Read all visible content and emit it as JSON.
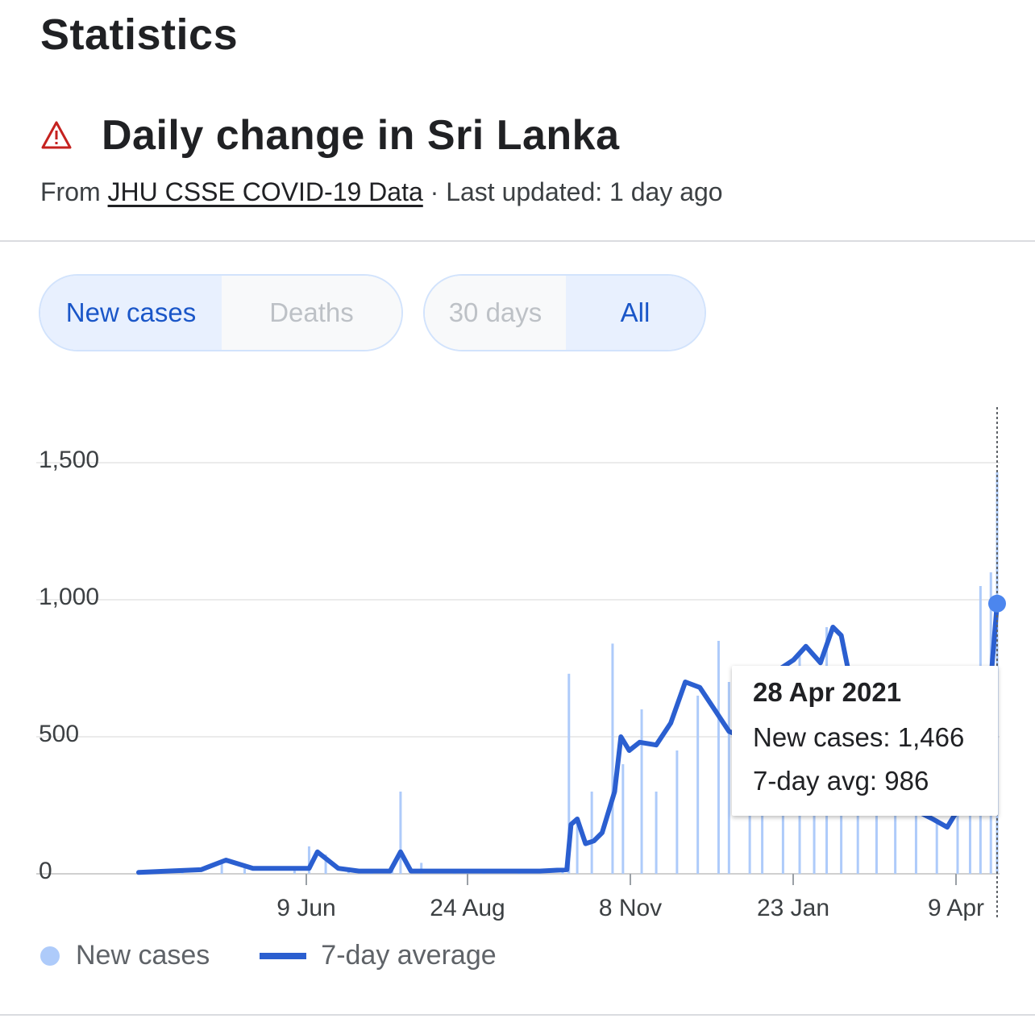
{
  "page": {
    "heading": "Statistics"
  },
  "header": {
    "title": "Daily change in Sri Lanka",
    "source_prefix": "From",
    "source_link": "JHU CSSE COVID-19 Data",
    "source_suffix": "· Last updated: 1 day ago"
  },
  "toggles": {
    "metric": {
      "options": [
        "New cases",
        "Deaths"
      ],
      "selected": "New cases"
    },
    "range": {
      "options": [
        "30 days",
        "All"
      ],
      "selected": "All"
    }
  },
  "tooltip": {
    "date": "28 Apr 2021",
    "new_cases": "New cases: 1,466",
    "avg": "7-day avg: 986"
  },
  "legend": {
    "new_cases": "New cases",
    "avg": "7-day average"
  },
  "colors": {
    "bars": "#aecbfa",
    "line": "#2b5fd0",
    "accent": "#1a56c8",
    "marker": "#4c86ee"
  },
  "chart_data": {
    "type": "bar",
    "x_ticks": [
      "9 Jun",
      "24 Aug",
      "8 Nov",
      "23 Jan",
      "9 Apr"
    ],
    "y_ticks": [
      "0",
      "500",
      "1,000",
      "1,500"
    ],
    "ylim": [
      0,
      1700
    ],
    "grid": true,
    "legend_position": "bottom",
    "series": [
      {
        "name": "New cases",
        "type": "bar",
        "dates": [
          "2020-03-11",
          "2020-04-01",
          "2020-04-20",
          "2020-05-01",
          "2020-05-25",
          "2020-06-01",
          "2020-06-09",
          "2020-06-20",
          "2020-07-01",
          "2020-07-11",
          "2020-07-15",
          "2020-07-25",
          "2020-08-10",
          "2020-08-24",
          "2020-09-10",
          "2020-10-01",
          "2020-10-04",
          "2020-10-08",
          "2020-10-15",
          "2020-10-25",
          "2020-10-30",
          "2020-11-08",
          "2020-11-15",
          "2020-11-25",
          "2020-12-05",
          "2020-12-15",
          "2020-12-20",
          "2020-12-30",
          "2021-01-05",
          "2021-01-15",
          "2021-01-23",
          "2021-01-30",
          "2021-02-05",
          "2021-02-12",
          "2021-02-20",
          "2021-03-01",
          "2021-03-10",
          "2021-03-20",
          "2021-03-30",
          "2021-04-09",
          "2021-04-15",
          "2021-04-20",
          "2021-04-25",
          "2021-04-28"
        ],
        "values": [
          5,
          20,
          40,
          20,
          15,
          100,
          70,
          15,
          10,
          20,
          300,
          40,
          10,
          10,
          15,
          10,
          730,
          200,
          300,
          840,
          400,
          600,
          300,
          450,
          650,
          850,
          700,
          550,
          500,
          600,
          800,
          650,
          900,
          600,
          400,
          350,
          250,
          300,
          200,
          300,
          350,
          1050,
          1100,
          1466
        ]
      },
      {
        "name": "7-day average",
        "type": "line",
        "dates": [
          "2020-03-11",
          "2020-03-25",
          "2020-04-10",
          "2020-04-22",
          "2020-05-05",
          "2020-05-20",
          "2020-06-01",
          "2020-06-05",
          "2020-06-15",
          "2020-06-25",
          "2020-07-05",
          "2020-07-10",
          "2020-07-15",
          "2020-07-20",
          "2020-08-01",
          "2020-08-15",
          "2020-09-01",
          "2020-09-20",
          "2020-10-03",
          "2020-10-05",
          "2020-10-08",
          "2020-10-12",
          "2020-10-16",
          "2020-10-20",
          "2020-10-26",
          "2020-10-29",
          "2020-11-02",
          "2020-11-07",
          "2020-11-15",
          "2020-11-22",
          "2020-11-29",
          "2020-12-06",
          "2020-12-13",
          "2020-12-20",
          "2020-12-26",
          "2020-12-31",
          "2021-01-05",
          "2021-01-12",
          "2021-01-20",
          "2021-01-26",
          "2021-02-02",
          "2021-02-08",
          "2021-02-12",
          "2021-02-16",
          "2021-02-20",
          "2021-03-01",
          "2021-03-15",
          "2021-03-28",
          "2021-04-04",
          "2021-04-12",
          "2021-04-18",
          "2021-04-22",
          "2021-04-26",
          "2021-04-28"
        ],
        "values": [
          5,
          10,
          15,
          50,
          20,
          20,
          20,
          80,
          20,
          10,
          10,
          10,
          80,
          10,
          10,
          10,
          10,
          10,
          15,
          180,
          200,
          110,
          120,
          150,
          300,
          500,
          450,
          480,
          470,
          550,
          700,
          680,
          600,
          520,
          500,
          560,
          610,
          740,
          780,
          830,
          770,
          900,
          870,
          720,
          600,
          400,
          250,
          200,
          170,
          270,
          300,
          420,
          800,
          986
        ]
      }
    ]
  }
}
